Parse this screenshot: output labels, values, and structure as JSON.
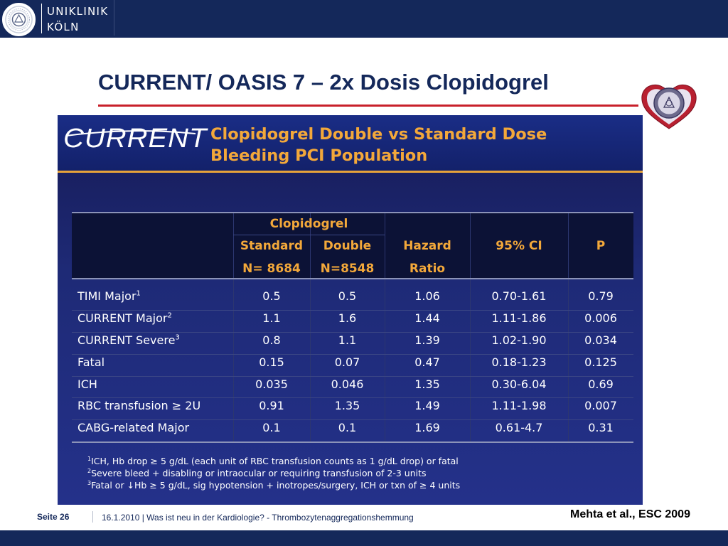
{
  "header": {
    "logo_line1": "UNIKLINIK",
    "logo_line2": "KÖLN",
    "brand_color": "#14285a"
  },
  "title": "CURRENT/ OASIS 7 – 2x Dosis Clopidogrel",
  "accent_color": "#c8202a",
  "slide": {
    "brand_logo": "CURRENT",
    "title_line1": "Clopidogrel Double vs Standard Dose",
    "title_line2": "Bleeding PCI Population",
    "table": {
      "group_header": "Clopidogrel",
      "headers": {
        "standard": "Standard",
        "standard_n": "N= 8684",
        "double": "Double",
        "double_n": "N=8548",
        "hazard": "Hazard",
        "ratio": "Ratio",
        "ci": "95% CI",
        "p": "P"
      },
      "rows": [
        {
          "label": "TIMI Major",
          "sup": "1",
          "standard": "0.5",
          "double": "0.5",
          "hr": "1.06",
          "ci": "0.70-1.61",
          "p": "0.79"
        },
        {
          "label": "CURRENT Major",
          "sup": "2",
          "standard": "1.1",
          "double": "1.6",
          "hr": "1.44",
          "ci": "1.11-1.86",
          "p": "0.006"
        },
        {
          "label": "CURRENT Severe",
          "sup": "3",
          "standard": "0.8",
          "double": "1.1",
          "hr": "1.39",
          "ci": "1.02-1.90",
          "p": "0.034"
        },
        {
          "label": "Fatal",
          "sup": "",
          "standard": "0.15",
          "double": "0.07",
          "hr": "0.47",
          "ci": "0.18-1.23",
          "p": "0.125"
        },
        {
          "label": "ICH",
          "sup": "",
          "standard": "0.035",
          "double": "0.046",
          "hr": "1.35",
          "ci": "0.30-6.04",
          "p": "0.69"
        },
        {
          "label": "RBC transfusion ≥ 2U",
          "sup": "",
          "standard": "0.91",
          "double": "1.35",
          "hr": "1.49",
          "ci": "1.11-1.98",
          "p": "0.007"
        },
        {
          "label": "CABG-related Major",
          "sup": "",
          "standard": "0.1",
          "double": "0.1",
          "hr": "1.69",
          "ci": "0.61-4.7",
          "p": "0.31"
        }
      ]
    },
    "footnotes": [
      {
        "sup": "1",
        "text": "ICH, Hb drop ≥ 5 g/dL (each unit of RBC transfusion counts as 1 g/dL drop) or fatal"
      },
      {
        "sup": "2",
        "text": "Severe bleed + disabling or intraocular or requiring transfusion of 2-3 units"
      },
      {
        "sup": "3",
        "text": "Fatal or ↓Hb ≥ 5 g/dL, sig hypotension + inotropes/surgery, ICH or txn of ≥ 4 units"
      }
    ]
  },
  "footer": {
    "page_label": "Seite 26",
    "text": "16.1.2010 | Was ist neu in der Kardiologie? - Thrombozytenaggregationshemmung",
    "citation": "Mehta et al., ESC 2009"
  }
}
